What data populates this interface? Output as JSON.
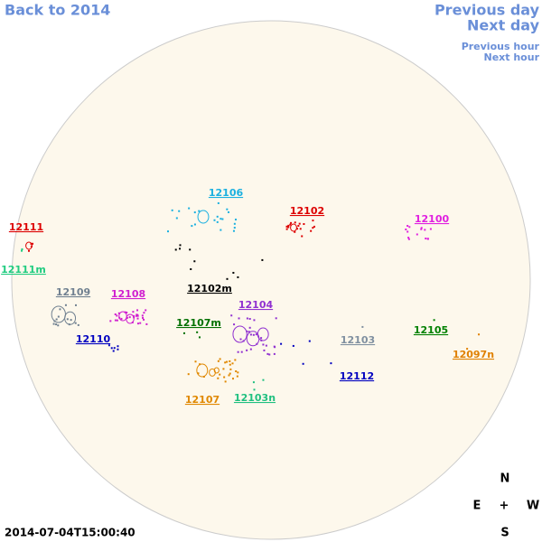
{
  "nav": {
    "back": "Back to 2014",
    "previous_day": "Previous day",
    "next_day": "Next day",
    "previous_hour": "Previous hour",
    "next_hour": "Next hour"
  },
  "timestamp": "2014-07-04T15:00:40",
  "compass": {
    "north": "N",
    "east": "E",
    "center": "+",
    "west": "W",
    "south": "S"
  },
  "regions": [
    {
      "label": "12106",
      "color": "#1ab0e0"
    },
    {
      "label": "12102",
      "color": "#dd0000"
    },
    {
      "label": "12100",
      "color": "#e020e0"
    },
    {
      "label": "12111",
      "color": "#dd0000"
    },
    {
      "label": "12111m",
      "color": "#20cc80"
    },
    {
      "label": "12109",
      "color": "#708090"
    },
    {
      "label": "12108",
      "color": "#d020d0"
    },
    {
      "label": "12102m",
      "color": "#000000"
    },
    {
      "label": "12104",
      "color": "#9030d0"
    },
    {
      "label": "12107m",
      "color": "#007000"
    },
    {
      "label": "12110",
      "color": "#0000c0"
    },
    {
      "label": "12103",
      "color": "#8090a0"
    },
    {
      "label": "12105",
      "color": "#008000"
    },
    {
      "label": "12097n",
      "color": "#e08000"
    },
    {
      "label": "12112",
      "color": "#0000c0"
    },
    {
      "label": "12107",
      "color": "#e08800"
    },
    {
      "label": "12103n",
      "color": "#20c080"
    }
  ]
}
